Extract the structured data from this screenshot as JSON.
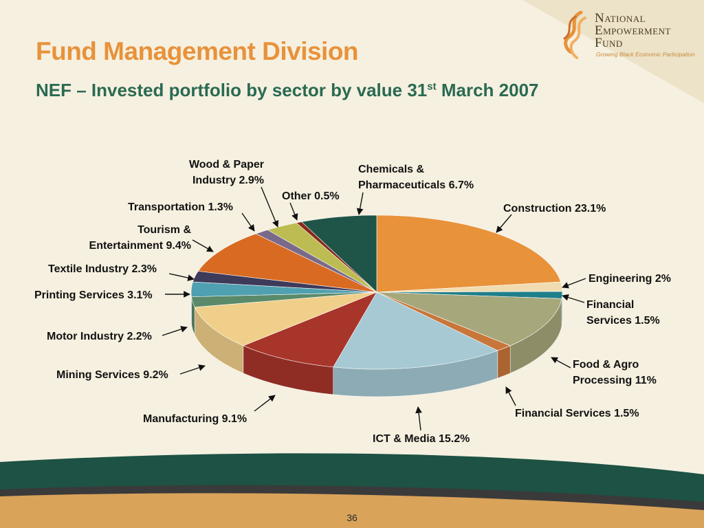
{
  "slide": {
    "title": "Fund Management Division",
    "subtitle_main": "NEF – Invested portfolio by sector by value 31",
    "subtitle_sup": "st",
    "subtitle_end": " March 2007",
    "page_number": "36"
  },
  "logo": {
    "line1": "National",
    "line2": "Empowerment",
    "line3": "Fund",
    "tagline": "Growing Black Economic Participation"
  },
  "colors": {
    "title": "#e8923a",
    "subtitle": "#2a6a52",
    "band_green": "#1d5244",
    "band_orange": "#d9a35a"
  },
  "chart_data": {
    "type": "pie",
    "title": "",
    "slices": [
      {
        "label": "Construction 23.1%",
        "value": 23.1,
        "color": "#e8923a"
      },
      {
        "label": "Engineering 2%",
        "value": 2.0,
        "color": "#f0dcb0"
      },
      {
        "label": "Financial Services 1.5%",
        "value": 1.5,
        "color": "#1f7f8a"
      },
      {
        "label": "Food & Agro Processing 11%",
        "value": 11.0,
        "color": "#a6a77a"
      },
      {
        "label": "Financial Services 1.5%",
        "value": 1.5,
        "color": "#c8763a"
      },
      {
        "label": "ICT & Media 15.2%",
        "value": 15.2,
        "color": "#a6c9d4"
      },
      {
        "label": "Manufacturing 9.1%",
        "value": 9.1,
        "color": "#a8352a"
      },
      {
        "label": "Mining Services 9.2%",
        "value": 9.2,
        "color": "#f0cf8a"
      },
      {
        "label": "Motor Industry 2.2%",
        "value": 2.2,
        "color": "#5a8a6a"
      },
      {
        "label": "Printing Services 3.1%",
        "value": 3.1,
        "color": "#4fa0b0"
      },
      {
        "label": "Textile Industry 2.3%",
        "value": 2.3,
        "color": "#3e3a5a"
      },
      {
        "label": "Tourism & Entertainment 9.4%",
        "value": 9.4,
        "color": "#d96a22"
      },
      {
        "label": "Transportation 1.3%",
        "value": 1.3,
        "color": "#7a6a8a"
      },
      {
        "label": "Wood & Paper Industry 2.9%",
        "value": 2.9,
        "color": "#bcbc52"
      },
      {
        "label": "Other 0.5%",
        "value": 0.5,
        "color": "#8a2a1a"
      },
      {
        "label": "Chemicals & Pharmaceuticals 6.7%",
        "value": 6.7,
        "color": "#1e5548"
      }
    ]
  }
}
